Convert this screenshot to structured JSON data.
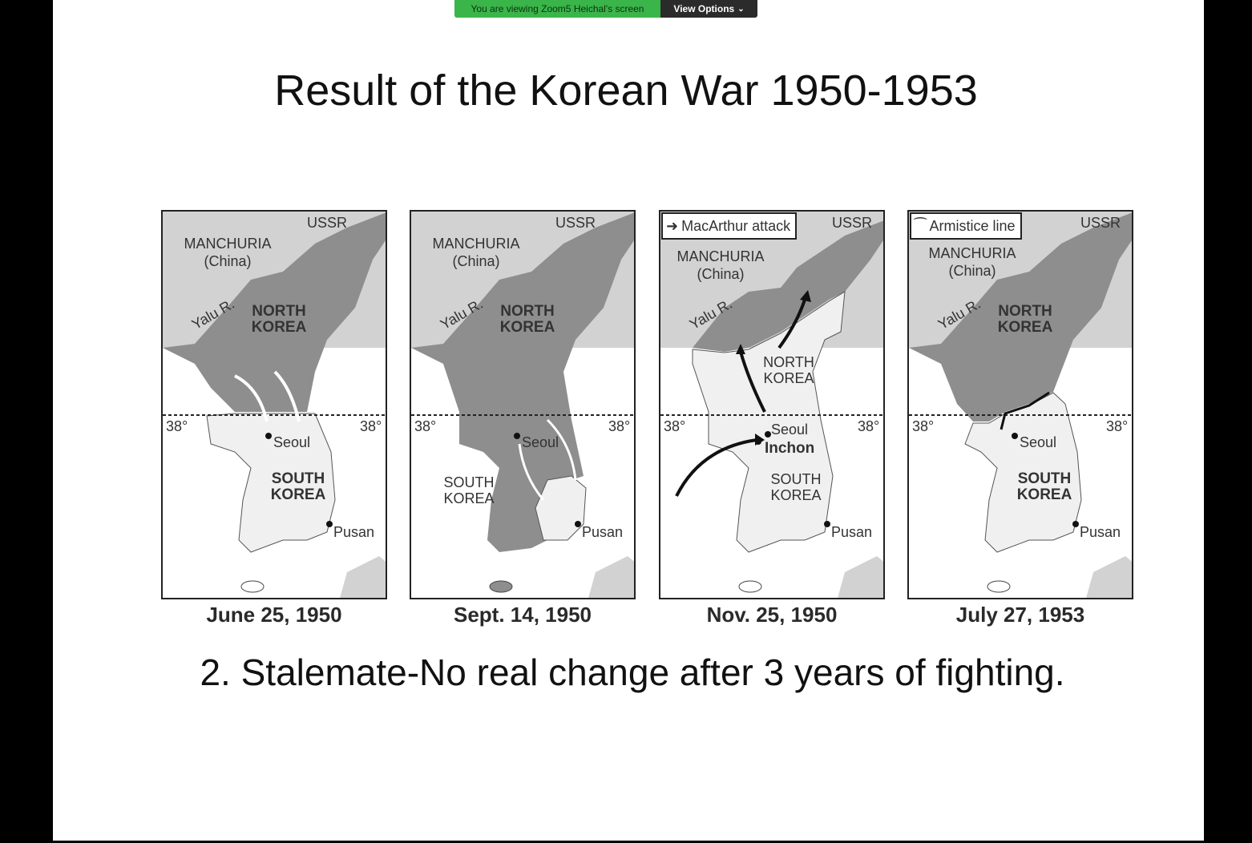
{
  "share_bar": {
    "status": "You are viewing Zoom5 Heichal's screen",
    "view_options": "View Options",
    "status_color": "#39b54a"
  },
  "slide": {
    "title": "Result of the Korean War 1950-1953",
    "subtitle": "2. Stalemate-No real change after 3 years of fighting."
  },
  "maps": [
    {
      "caption": "June 25, 1950",
      "labels": {
        "manchuria": "MANCHURIA",
        "china": "(China)",
        "ussr": "USSR",
        "yalu": "Yalu R.",
        "north": "NORTH\nKOREA",
        "south": "SOUTH\nKOREA",
        "seoul": "Seoul",
        "pusan": "Pusan",
        "parallel": "38°"
      }
    },
    {
      "caption": "Sept. 14, 1950",
      "labels": {
        "manchuria": "MANCHURIA",
        "china": "(China)",
        "ussr": "USSR",
        "yalu": "Yalu R.",
        "north": "NORTH\nKOREA",
        "south": "SOUTH\nKOREA",
        "seoul": "Seoul",
        "pusan": "Pusan",
        "parallel": "38°"
      }
    },
    {
      "caption": "Nov. 25, 1950",
      "legend": "MacArthur attack",
      "labels": {
        "manchuria": "MANCHURIA",
        "china": "(China)",
        "ussr": "USSR",
        "yalu": "Yalu R.",
        "north": "NORTH\nKOREA",
        "south": "SOUTH\nKOREA",
        "seoul": "Seoul",
        "inchon": "Inchon",
        "pusan": "Pusan",
        "parallel": "38°"
      }
    },
    {
      "caption": "July 27, 1953",
      "legend": "Armistice line",
      "labels": {
        "manchuria": "MANCHURIA",
        "china": "(China)",
        "ussr": "USSR",
        "yalu": "Yalu R.",
        "north": "NORTH\nKOREA",
        "south": "SOUTH\nKOREA",
        "seoul": "Seoul",
        "pusan": "Pusan",
        "parallel": "38°"
      }
    }
  ]
}
